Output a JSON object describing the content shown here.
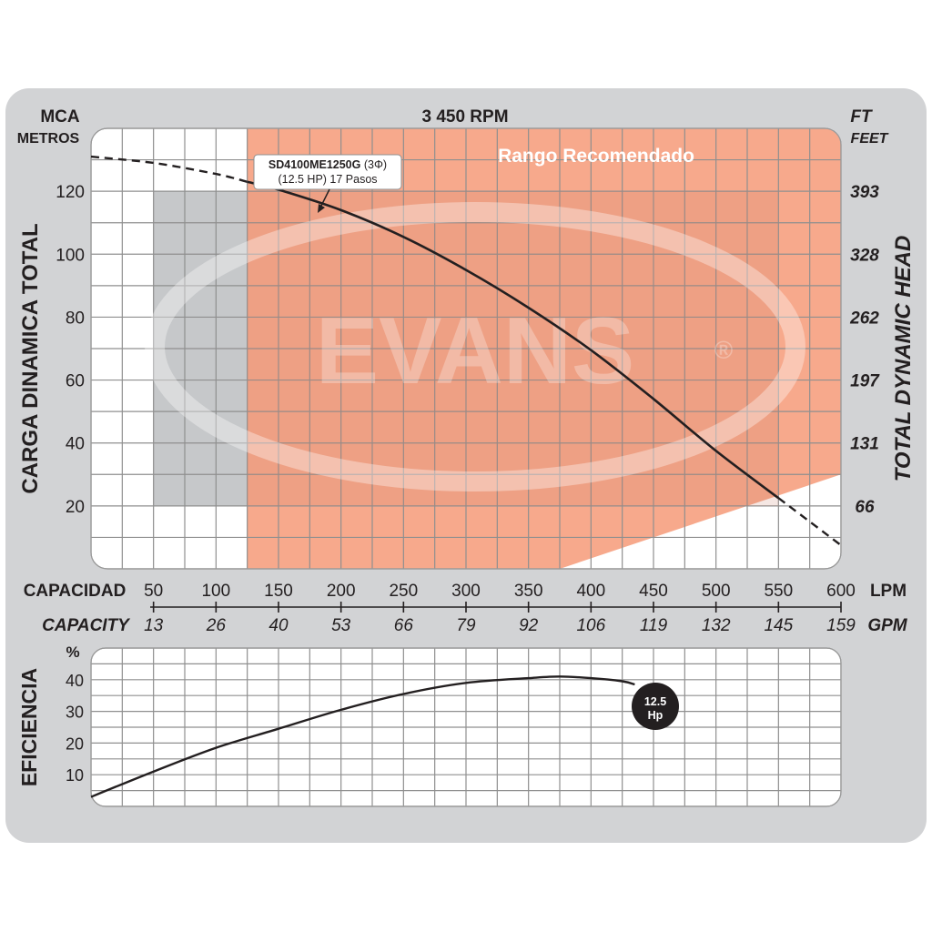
{
  "chart_data": [
    {
      "type": "line",
      "title": "3 450 RPM",
      "left_unit_top": "MCA",
      "left_unit_bottom": "METROS",
      "right_unit_top": "FT",
      "right_unit_bottom": "FEET",
      "ylabel": "CARGA  DINAMICA  TOTAL",
      "ylabel_right": "TOTAL  DYNAMIC  HEAD",
      "xlabel": "CAPACIDAD",
      "xlabel_unit": "LPM",
      "xlabel_secondary": "CAPACITY",
      "xlabel_secondary_unit": "GPM",
      "xlim": [
        0,
        600
      ],
      "ylim": [
        0,
        140
      ],
      "x_ticks": [
        50,
        100,
        150,
        200,
        250,
        300,
        350,
        400,
        450,
        500,
        550,
        600
      ],
      "x_ticks_secondary": [
        "13",
        "26",
        "40",
        "53",
        "66",
        "79",
        "92",
        "106",
        "119",
        "132",
        "145",
        "159"
      ],
      "y_ticks": [
        20,
        40,
        60,
        80,
        100,
        120
      ],
      "y_ticks_right": [
        "66",
        "131",
        "197",
        "262",
        "328",
        "393"
      ],
      "grid": true,
      "recommended_range_label": "Rango Recomendado",
      "watermark": "EVANS",
      "watermark_mark": "®",
      "colors": {
        "recommended": "#f7a98c",
        "gray_zone": "#c6c8ca",
        "curve": "#231f20",
        "frame": "#d2d3d5"
      },
      "series": [
        {
          "name": "SD4100ME1250G (3Φ) (12.5 HP) 17 Pasos",
          "label_line1_bold": "SD4100ME1250G",
          "label_line1_rest": " (3Φ)",
          "label_line2": "(12.5 HP) 17 Pasos",
          "x": [
            0,
            50,
            100,
            125,
            150,
            200,
            250,
            300,
            350,
            400,
            450,
            500,
            550,
            600
          ],
          "values": [
            131,
            129,
            125.5,
            123,
            120.5,
            114,
            105.5,
            95,
            83,
            69.5,
            54,
            37.5,
            22.5,
            7.5
          ],
          "dashed_before_x": 125,
          "dashed_after_x": 550
        }
      ]
    },
    {
      "type": "line",
      "ylabel": "EFICIENCIA",
      "yunit": "%",
      "xlim": [
        0,
        600
      ],
      "ylim": [
        0,
        50
      ],
      "y_ticks": [
        10,
        20,
        30,
        40
      ],
      "grid": true,
      "end_badge_line1": "12.5",
      "end_badge_line2": "Hp",
      "series": [
        {
          "name": "",
          "x": [
            0,
            50,
            100,
            150,
            200,
            250,
            300,
            350,
            375,
            400,
            425,
            435
          ],
          "values": [
            3,
            11,
            18.5,
            24.5,
            30.5,
            35.5,
            39,
            40.5,
            41,
            40.5,
            39.5,
            38.5
          ]
        }
      ]
    }
  ]
}
